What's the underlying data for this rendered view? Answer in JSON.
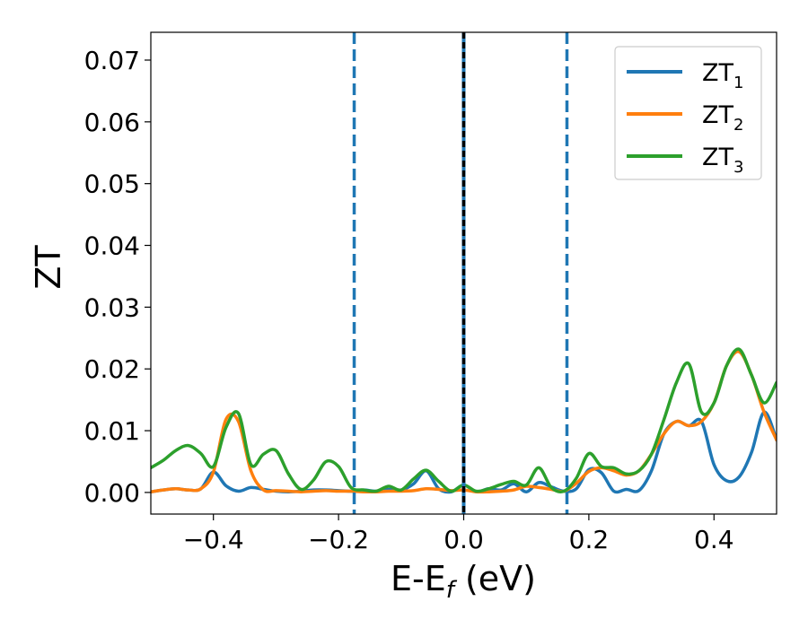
{
  "chart_data": {
    "type": "line",
    "xlabel_main": "E-E",
    "xlabel_sub": "f",
    "xlabel_unit": " (eV)",
    "ylabel": "ZT",
    "xlim": [
      -0.5,
      0.5
    ],
    "ylim": [
      -0.0035,
      0.0745
    ],
    "xticks": [
      -0.4,
      -0.2,
      0.0,
      0.2,
      0.4
    ],
    "xtick_labels": [
      "−0.4",
      "−0.2",
      "0.0",
      "0.2",
      "0.4"
    ],
    "yticks": [
      0.0,
      0.01,
      0.02,
      0.03,
      0.04,
      0.05,
      0.06,
      0.07
    ],
    "ytick_labels": [
      "0.00",
      "0.01",
      "0.02",
      "0.03",
      "0.04",
      "0.05",
      "0.06",
      "0.07"
    ],
    "grid": false,
    "legend_position": "top-right",
    "vlines": [
      {
        "x": -0.175,
        "style": "dashed",
        "color": "#1f77b4"
      },
      {
        "x": 0.0,
        "style": "solid",
        "color": "#1f77b4"
      },
      {
        "x": 0.0,
        "style": "dashed",
        "color": "#000000"
      },
      {
        "x": 0.165,
        "style": "dashed",
        "color": "#1f77b4"
      }
    ],
    "series": [
      {
        "name": "ZT",
        "subscript": "1",
        "color": "#1f77b4",
        "x": [
          -0.5,
          -0.48,
          -0.46,
          -0.44,
          -0.42,
          -0.4,
          -0.38,
          -0.36,
          -0.34,
          -0.32,
          -0.3,
          -0.28,
          -0.26,
          -0.24,
          -0.22,
          -0.2,
          -0.18,
          -0.16,
          -0.14,
          -0.12,
          -0.1,
          -0.08,
          -0.06,
          -0.04,
          -0.02,
          0.0,
          0.02,
          0.04,
          0.06,
          0.08,
          0.1,
          0.12,
          0.14,
          0.16,
          0.18,
          0.2,
          0.22,
          0.24,
          0.26,
          0.28,
          0.3,
          0.32,
          0.34,
          0.36,
          0.38,
          0.4,
          0.42,
          0.44,
          0.46,
          0.48,
          0.5
        ],
        "y": [
          0.0001,
          0.0004,
          0.0006,
          0.0004,
          0.0006,
          0.0033,
          0.0011,
          0.0002,
          0.0008,
          0.0005,
          0.0002,
          0.0001,
          0.0002,
          0.0004,
          0.0004,
          0.0003,
          0.0002,
          0.0004,
          0.0002,
          0.0005,
          0.0004,
          0.0014,
          0.0035,
          0.0006,
          0.0001,
          0.0012,
          0.0001,
          0.0006,
          0.0004,
          0.0014,
          0.0001,
          0.0016,
          0.0009,
          0.0002,
          0.0006,
          0.0037,
          0.0032,
          0.0002,
          0.0005,
          0.0003,
          0.0035,
          0.0095,
          0.0115,
          0.0108,
          0.0115,
          0.0045,
          0.0019,
          0.0025,
          0.0065,
          0.013,
          0.0085
        ]
      },
      {
        "name": "ZT",
        "subscript": "2",
        "color": "#ff7f0e",
        "x": [
          -0.5,
          -0.48,
          -0.46,
          -0.44,
          -0.42,
          -0.4,
          -0.38,
          -0.36,
          -0.34,
          -0.32,
          -0.3,
          -0.28,
          -0.26,
          -0.24,
          -0.22,
          -0.2,
          -0.18,
          -0.16,
          -0.14,
          -0.12,
          -0.1,
          -0.08,
          -0.06,
          -0.04,
          -0.02,
          0.0,
          0.02,
          0.04,
          0.06,
          0.08,
          0.1,
          0.12,
          0.14,
          0.16,
          0.18,
          0.2,
          0.22,
          0.24,
          0.26,
          0.28,
          0.3,
          0.32,
          0.34,
          0.36,
          0.38,
          0.4,
          0.42,
          0.44,
          0.46,
          0.48,
          0.5
        ],
        "y": [
          0.0001,
          0.0004,
          0.0006,
          0.0004,
          0.0006,
          0.0033,
          0.0118,
          0.0115,
          0.0035,
          0.0004,
          0.0003,
          0.0002,
          0.0001,
          0.0002,
          0.0003,
          0.0002,
          0.0002,
          0.0001,
          0.0001,
          0.0002,
          0.0002,
          0.0003,
          0.0006,
          0.0005,
          0.0003,
          0.0004,
          0.0001,
          0.0001,
          0.0002,
          0.0004,
          0.001,
          0.0008,
          0.0005,
          0.0002,
          0.0015,
          0.0034,
          0.004,
          0.0035,
          0.0028,
          0.0035,
          0.0062,
          0.0095,
          0.0115,
          0.0108,
          0.0115,
          0.0145,
          0.0205,
          0.0228,
          0.019,
          0.013,
          0.0085
        ]
      },
      {
        "name": "ZT",
        "subscript": "3",
        "color": "#2ca02c",
        "x": [
          -0.5,
          -0.48,
          -0.46,
          -0.44,
          -0.42,
          -0.4,
          -0.38,
          -0.36,
          -0.34,
          -0.32,
          -0.3,
          -0.28,
          -0.26,
          -0.24,
          -0.22,
          -0.2,
          -0.18,
          -0.16,
          -0.14,
          -0.12,
          -0.1,
          -0.08,
          -0.06,
          -0.04,
          -0.02,
          0.0,
          0.02,
          0.04,
          0.06,
          0.08,
          0.1,
          0.12,
          0.14,
          0.16,
          0.18,
          0.2,
          0.22,
          0.24,
          0.26,
          0.28,
          0.3,
          0.32,
          0.34,
          0.36,
          0.38,
          0.4,
          0.42,
          0.44,
          0.46,
          0.48,
          0.5
        ],
        "y": [
          0.004,
          0.0052,
          0.0068,
          0.0076,
          0.0063,
          0.0042,
          0.0105,
          0.0128,
          0.0045,
          0.0062,
          0.0068,
          0.003,
          0.0005,
          0.002,
          0.005,
          0.0042,
          0.0008,
          0.0004,
          0.0002,
          0.001,
          0.0004,
          0.0022,
          0.0036,
          0.0018,
          0.0002,
          0.0012,
          0.0002,
          0.0006,
          0.0013,
          0.0018,
          0.0012,
          0.004,
          0.0008,
          0.0002,
          0.0023,
          0.0063,
          0.0042,
          0.004,
          0.003,
          0.0035,
          0.0062,
          0.0118,
          0.0178,
          0.0208,
          0.013,
          0.0145,
          0.0205,
          0.0232,
          0.019,
          0.0145,
          0.0178
        ]
      }
    ]
  }
}
